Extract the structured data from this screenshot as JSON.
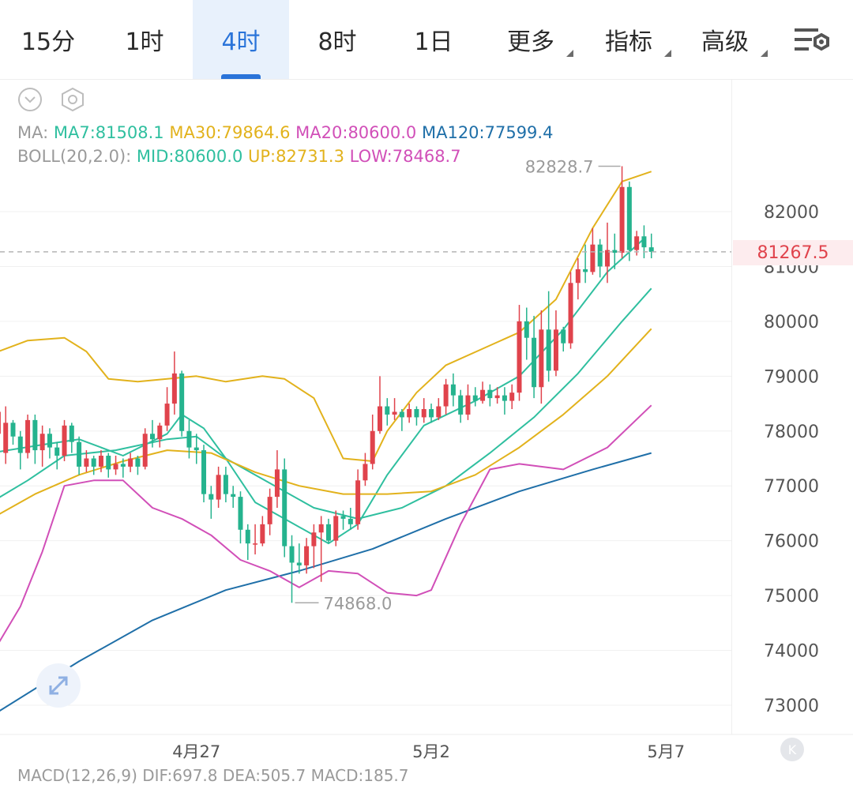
{
  "tabs": [
    {
      "label": "15分",
      "active": false,
      "dropdown": false
    },
    {
      "label": "1时",
      "active": false,
      "dropdown": false
    },
    {
      "label": "4时",
      "active": true,
      "dropdown": false
    },
    {
      "label": "8时",
      "active": false,
      "dropdown": false
    },
    {
      "label": "1日",
      "active": false,
      "dropdown": false
    },
    {
      "label": "更多",
      "active": false,
      "dropdown": true
    },
    {
      "label": "指标",
      "active": false,
      "dropdown": true
    },
    {
      "label": "高级",
      "active": false,
      "dropdown": true
    }
  ],
  "icons": {
    "settings": "chart-settings-icon",
    "collapse": "chevron-down-circle-icon",
    "hexagon": "hexagon-settings-icon",
    "expand": "expand-arrows-icon",
    "reset": "reset-icon"
  },
  "legend": {
    "ma": {
      "prefix": "MA:",
      "items": [
        {
          "text": "MA7:81508.1",
          "color": "#2fbf9f"
        },
        {
          "text": "MA30:79864.6",
          "color": "#e2b21c"
        },
        {
          "text": "MA20:80600.0",
          "color": "#d14fb8"
        },
        {
          "text": "MA120:77599.4",
          "color": "#1f6fa8"
        }
      ]
    },
    "boll": {
      "prefix": "BOLL(20,2.0):",
      "items": [
        {
          "text": "MID:80600.0",
          "color": "#2fbf9f"
        },
        {
          "text": "UP:82731.3",
          "color": "#e2b21c"
        },
        {
          "text": "LOW:78468.7",
          "color": "#d14fb8"
        }
      ]
    }
  },
  "current_price": "81267.5",
  "high_label": "82828.7",
  "low_label": "74868.0",
  "reset_label": "K",
  "macd_partial": "MACD(12,26,9)  DIF:697.8  DEA:505.7  MACD:185.7",
  "colors": {
    "up": "#e0434c",
    "down": "#25b38e",
    "accent": "#2a74d9",
    "grid": "#f0f0f0",
    "axis_text": "#555555"
  },
  "chart_data": {
    "type": "candlestick",
    "interval": "4时",
    "y_ticks": [
      82000,
      81000,
      80000,
      79000,
      78000,
      77000,
      76000,
      75000,
      74000,
      73000
    ],
    "x_ticks": [
      {
        "label": "4月27",
        "index": 26
      },
      {
        "label": "5月2",
        "index": 58
      },
      {
        "label": "5月7",
        "index": 90
      }
    ],
    "candles": [
      [
        -1,
        77950,
        78350,
        77700,
        77600
      ],
      [
        0,
        77600,
        78150,
        78450,
        77400
      ],
      [
        1,
        78150,
        77900,
        78200,
        77750
      ],
      [
        2,
        77900,
        77600,
        78000,
        77300
      ],
      [
        3,
        77600,
        78200,
        78300,
        77500
      ],
      [
        4,
        78200,
        77650,
        78300,
        77400
      ],
      [
        5,
        77650,
        77950,
        78100,
        77350
      ],
      [
        6,
        77950,
        77700,
        78050,
        77500
      ],
      [
        7,
        77700,
        77550,
        77800,
        77300
      ],
      [
        8,
        77550,
        78100,
        78200,
        77450
      ],
      [
        9,
        78100,
        77800,
        78150,
        77600
      ],
      [
        10,
        77800,
        77350,
        77900,
        77200
      ],
      [
        11,
        77350,
        77500,
        77650,
        77250
      ],
      [
        12,
        77500,
        77350,
        77550,
        77200
      ],
      [
        13,
        77350,
        77550,
        77650,
        77250
      ],
      [
        14,
        77550,
        77300,
        77600,
        77150
      ],
      [
        15,
        77300,
        77400,
        77550,
        77200
      ],
      [
        16,
        77400,
        77350,
        77500,
        77150
      ],
      [
        17,
        77350,
        77500,
        77600,
        77250
      ],
      [
        18,
        77500,
        77350,
        77550,
        77200
      ],
      [
        19,
        77350,
        77950,
        78050,
        77300
      ],
      [
        20,
        77950,
        77850,
        78200,
        77700
      ],
      [
        21,
        77850,
        78100,
        78150,
        77700
      ],
      [
        22,
        78100,
        78500,
        78800,
        78000
      ],
      [
        23,
        78500,
        79050,
        79450,
        78300
      ],
      [
        24,
        79050,
        78000,
        79100,
        77900
      ],
      [
        25,
        78000,
        77700,
        78200,
        77500
      ],
      [
        26,
        77700,
        77650,
        77950,
        77400
      ],
      [
        27,
        77650,
        76850,
        77750,
        76700
      ],
      [
        28,
        76850,
        76750,
        77000,
        76400
      ],
      [
        29,
        76750,
        77200,
        77350,
        76600
      ],
      [
        30,
        77200,
        76850,
        77350,
        76700
      ],
      [
        31,
        76850,
        76800,
        77000,
        76600
      ],
      [
        32,
        76800,
        76200,
        76900,
        75950
      ],
      [
        33,
        76200,
        75950,
        76300,
        75650
      ],
      [
        34,
        75950,
        75950,
        76300,
        75750
      ],
      [
        35,
        75950,
        76300,
        76450,
        75900
      ],
      [
        36,
        76300,
        76800,
        76950,
        76100
      ],
      [
        37,
        76800,
        77300,
        77650,
        76600
      ],
      [
        38,
        77300,
        75900,
        77500,
        75700
      ],
      [
        39,
        75900,
        75600,
        76100,
        74868
      ],
      [
        40,
        75600,
        75550,
        75950,
        75400
      ],
      [
        41,
        75550,
        75900,
        76050,
        75400
      ],
      [
        42,
        75900,
        76150,
        76300,
        75500
      ],
      [
        43,
        76150,
        76300,
        76450,
        75250
      ],
      [
        44,
        76300,
        76000,
        76400,
        75950
      ],
      [
        45,
        76000,
        76450,
        76550,
        75900
      ],
      [
        46,
        76450,
        76400,
        76550,
        76200
      ],
      [
        47,
        76400,
        76300,
        76600,
        76200
      ],
      [
        48,
        76300,
        77100,
        77300,
        76200
      ],
      [
        49,
        77100,
        77400,
        77600,
        77000
      ],
      [
        50,
        77400,
        78000,
        78300,
        77300
      ],
      [
        51,
        78000,
        78450,
        79000,
        77950
      ],
      [
        52,
        78450,
        78300,
        78600,
        78100
      ],
      [
        53,
        78300,
        78350,
        78600,
        78200
      ],
      [
        54,
        78350,
        78250,
        78400,
        78000
      ],
      [
        55,
        78250,
        78400,
        78500,
        78150
      ],
      [
        56,
        78400,
        78250,
        78450,
        78100
      ],
      [
        57,
        78250,
        78400,
        78600,
        78150
      ],
      [
        58,
        78400,
        78250,
        78500,
        78150
      ],
      [
        59,
        78250,
        78450,
        78600,
        78200
      ],
      [
        60,
        78450,
        78850,
        78950,
        78300
      ],
      [
        61,
        78850,
        78650,
        79050,
        78450
      ],
      [
        62,
        78650,
        78300,
        78750,
        78150
      ],
      [
        63,
        78300,
        78650,
        78850,
        78200
      ],
      [
        64,
        78650,
        78550,
        78800,
        78450
      ],
      [
        65,
        78550,
        78750,
        78900,
        78500
      ],
      [
        66,
        78750,
        78600,
        78850,
        78450
      ],
      [
        67,
        78600,
        78650,
        78800,
        78500
      ],
      [
        68,
        78650,
        78550,
        78800,
        78300
      ],
      [
        69,
        78550,
        78700,
        78850,
        78400
      ],
      [
        70,
        78700,
        80000,
        80300,
        78550
      ],
      [
        71,
        80000,
        79700,
        80250,
        79300
      ],
      [
        72,
        79700,
        78800,
        80100,
        78600
      ],
      [
        73,
        78800,
        79850,
        80200,
        78500
      ],
      [
        74,
        79850,
        79100,
        80550,
        78900
      ],
      [
        75,
        79100,
        79850,
        80200,
        79000
      ],
      [
        76,
        79850,
        79600,
        79900,
        79450
      ],
      [
        77,
        79600,
        80700,
        80900,
        79500
      ],
      [
        78,
        80700,
        80950,
        81150,
        80400
      ],
      [
        79,
        80950,
        80900,
        81400,
        80700
      ],
      [
        80,
        80900,
        81400,
        81700,
        80850
      ],
      [
        81,
        81400,
        81000,
        81500,
        80800
      ],
      [
        82,
        81000,
        81300,
        81800,
        80700
      ],
      [
        83,
        81300,
        81250,
        81600,
        80950
      ],
      [
        84,
        81250,
        82450,
        82828.7,
        81150
      ],
      [
        85,
        82450,
        81300,
        82550,
        81100
      ],
      [
        86,
        81300,
        81550,
        81650,
        81200
      ],
      [
        87,
        81550,
        81350,
        81750,
        81150
      ],
      [
        88,
        81350,
        81267.5,
        81600,
        81150
      ]
    ],
    "candle_fields": [
      "index",
      "open",
      "close",
      "high",
      "low"
    ],
    "series": [
      {
        "name": "MA7",
        "color": "#2fbf9f",
        "values": [
          [
            -2,
            77600
          ],
          [
            5,
            77750
          ],
          [
            10,
            77850
          ],
          [
            16,
            77550
          ],
          [
            22,
            77950
          ],
          [
            24,
            78300
          ],
          [
            27,
            78050
          ],
          [
            30,
            77500
          ],
          [
            34,
            76700
          ],
          [
            38,
            76400
          ],
          [
            44,
            75950
          ],
          [
            48,
            76300
          ],
          [
            52,
            77200
          ],
          [
            57,
            78100
          ],
          [
            64,
            78550
          ],
          [
            70,
            79000
          ],
          [
            76,
            79850
          ],
          [
            82,
            80900
          ],
          [
            87,
            81508.1
          ]
        ]
      },
      {
        "name": "MA20",
        "color": "#2fbf9f",
        "values": [
          [
            -2,
            76700
          ],
          [
            3,
            77100
          ],
          [
            8,
            77550
          ],
          [
            15,
            77650
          ],
          [
            22,
            77850
          ],
          [
            26,
            77900
          ],
          [
            30,
            77500
          ],
          [
            36,
            77050
          ],
          [
            42,
            76600
          ],
          [
            48,
            76400
          ],
          [
            54,
            76600
          ],
          [
            60,
            77000
          ],
          [
            66,
            77600
          ],
          [
            72,
            78250
          ],
          [
            78,
            79050
          ],
          [
            84,
            80000
          ],
          [
            88,
            80600
          ]
        ]
      },
      {
        "name": "MA30",
        "color": "#e2b21c",
        "values": [
          [
            -2,
            76400
          ],
          [
            4,
            76850
          ],
          [
            10,
            77200
          ],
          [
            16,
            77450
          ],
          [
            22,
            77650
          ],
          [
            28,
            77600
          ],
          [
            34,
            77250
          ],
          [
            40,
            77000
          ],
          [
            46,
            76850
          ],
          [
            52,
            76850
          ],
          [
            58,
            76900
          ],
          [
            64,
            77200
          ],
          [
            70,
            77700
          ],
          [
            76,
            78300
          ],
          [
            82,
            79000
          ],
          [
            88,
            79864.6
          ]
        ]
      },
      {
        "name": "MA120",
        "color": "#1f6fa8",
        "values": [
          [
            -2,
            72800
          ],
          [
            10,
            73800
          ],
          [
            20,
            74550
          ],
          [
            30,
            75100
          ],
          [
            40,
            75450
          ],
          [
            50,
            75850
          ],
          [
            60,
            76400
          ],
          [
            70,
            76900
          ],
          [
            80,
            77300
          ],
          [
            88,
            77599.4
          ]
        ]
      },
      {
        "name": "UP",
        "color": "#e2b21c",
        "values": [
          [
            -2,
            79400
          ],
          [
            3,
            79650
          ],
          [
            8,
            79700
          ],
          [
            11,
            79450
          ],
          [
            14,
            78950
          ],
          [
            18,
            78900
          ],
          [
            22,
            78950
          ],
          [
            26,
            79000
          ],
          [
            30,
            78900
          ],
          [
            35,
            79000
          ],
          [
            38,
            78950
          ],
          [
            42,
            78600
          ],
          [
            46,
            77500
          ],
          [
            50,
            77450
          ],
          [
            52,
            78000
          ],
          [
            56,
            78700
          ],
          [
            60,
            79200
          ],
          [
            65,
            79500
          ],
          [
            70,
            79800
          ],
          [
            75,
            80400
          ],
          [
            80,
            81700
          ],
          [
            84,
            82550
          ],
          [
            88,
            82731.3
          ]
        ]
      },
      {
        "name": "LOW",
        "color": "#d14fb8",
        "values": [
          [
            -2,
            73900
          ],
          [
            2,
            74800
          ],
          [
            5,
            75800
          ],
          [
            8,
            77000
          ],
          [
            12,
            77100
          ],
          [
            16,
            77100
          ],
          [
            20,
            76600
          ],
          [
            24,
            76400
          ],
          [
            28,
            76100
          ],
          [
            32,
            75650
          ],
          [
            36,
            75450
          ],
          [
            40,
            75150
          ],
          [
            44,
            75450
          ],
          [
            48,
            75400
          ],
          [
            52,
            75050
          ],
          [
            56,
            75000
          ],
          [
            58,
            75100
          ],
          [
            62,
            76300
          ],
          [
            66,
            77300
          ],
          [
            70,
            77400
          ],
          [
            76,
            77300
          ],
          [
            82,
            77700
          ],
          [
            88,
            78468.7
          ]
        ]
      }
    ]
  }
}
